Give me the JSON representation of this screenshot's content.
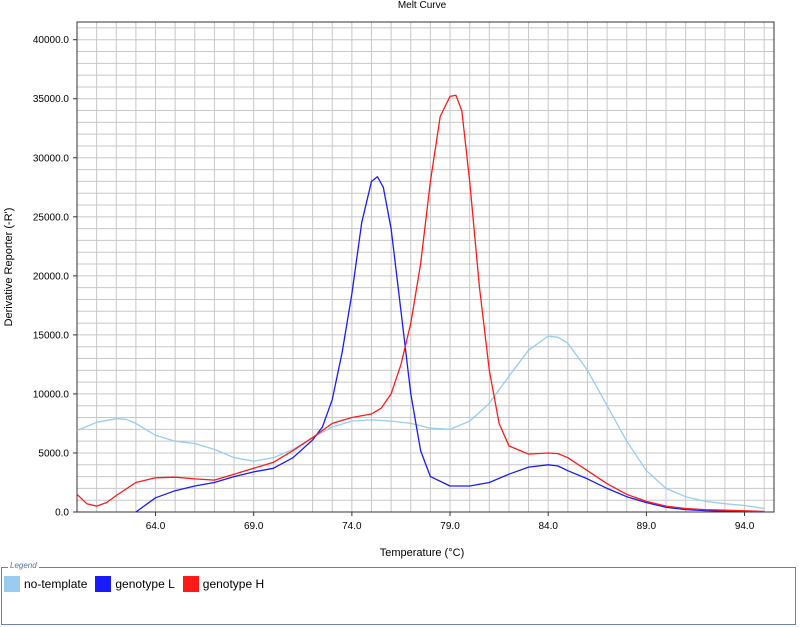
{
  "chart_data": {
    "type": "line",
    "title": "Melt Curve",
    "xlabel": "Temperature (°C)",
    "ylabel": "Derivative Reporter (-R')",
    "xlim": [
      60.0,
      95.5
    ],
    "ylim": [
      0,
      41500
    ],
    "xticks": [
      64.0,
      69.0,
      74.0,
      79.0,
      84.0,
      89.0,
      94.0
    ],
    "xtick_labels": [
      "64.0",
      "69.0",
      "74.0",
      "79.0",
      "84.0",
      "89.0",
      "94.0"
    ],
    "yticks": [
      0,
      5000,
      10000,
      15000,
      20000,
      25000,
      30000,
      35000,
      40000
    ],
    "ytick_labels": [
      "0.0",
      "5000.0",
      "10000.0",
      "15000.0",
      "20000.0",
      "25000.0",
      "30000.0",
      "35000.0",
      "40000.0"
    ],
    "grid": true,
    "legend_title": "Legend",
    "legend_position": "bottom",
    "series": [
      {
        "name": "no-template",
        "color": "#99ccee",
        "x": [
          60.0,
          61.0,
          62.0,
          62.5,
          63.0,
          64.0,
          65.0,
          66.0,
          67.0,
          68.0,
          69.0,
          70.0,
          71.0,
          72.0,
          73.0,
          74.0,
          75.0,
          76.0,
          77.0,
          78.0,
          79.0,
          80.0,
          81.0,
          82.0,
          83.0,
          84.0,
          84.5,
          85.0,
          86.0,
          87.0,
          88.0,
          89.0,
          90.0,
          91.0,
          92.0,
          93.0,
          94.0,
          95.0
        ],
        "y": [
          6900,
          7600,
          7900,
          7850,
          7500,
          6500,
          6000,
          5800,
          5300,
          4600,
          4300,
          4600,
          5300,
          6300,
          7200,
          7700,
          7800,
          7700,
          7500,
          7100,
          7000,
          7700,
          9200,
          11500,
          13700,
          14900,
          14800,
          14300,
          12000,
          9000,
          6000,
          3500,
          2000,
          1300,
          900,
          700,
          550,
          300
        ]
      },
      {
        "name": "genotype L",
        "color": "#1a1aff",
        "x": [
          63.0,
          64.0,
          65.0,
          66.0,
          67.0,
          68.0,
          69.0,
          70.0,
          71.0,
          72.0,
          72.5,
          73.0,
          73.5,
          74.0,
          74.5,
          75.0,
          75.3,
          75.6,
          76.0,
          76.5,
          77.0,
          77.5,
          78.0,
          79.0,
          80.0,
          81.0,
          82.0,
          83.0,
          84.0,
          84.5,
          85.0,
          86.0,
          87.0,
          88.0,
          89.0,
          90.0,
          91.0,
          92.0,
          93.0,
          94.0,
          95.0
        ],
        "y": [
          0,
          1200,
          1800,
          2200,
          2500,
          3000,
          3400,
          3700,
          4600,
          6100,
          7200,
          9500,
          13500,
          18500,
          24500,
          28000,
          28400,
          27500,
          24000,
          17000,
          10000,
          5200,
          3000,
          2200,
          2200,
          2500,
          3200,
          3800,
          4000,
          3900,
          3500,
          2800,
          2000,
          1300,
          800,
          400,
          200,
          120,
          80,
          50,
          30
        ]
      },
      {
        "name": "genotype H",
        "color": "#ff1a1a",
        "x": [
          60.0,
          60.5,
          61.0,
          61.5,
          62.0,
          63.0,
          64.0,
          65.0,
          66.0,
          67.0,
          68.0,
          69.0,
          70.0,
          71.0,
          72.0,
          73.0,
          74.0,
          75.0,
          75.5,
          76.0,
          76.5,
          77.0,
          77.5,
          78.0,
          78.5,
          79.0,
          79.3,
          79.6,
          80.0,
          80.5,
          81.0,
          81.5,
          82.0,
          83.0,
          84.0,
          84.5,
          85.0,
          86.0,
          87.0,
          88.0,
          89.0,
          90.0,
          91.0,
          92.0,
          93.0,
          94.0,
          95.0
        ],
        "y": [
          1500,
          700,
          500,
          800,
          1400,
          2500,
          2900,
          2950,
          2800,
          2700,
          3200,
          3700,
          4200,
          5200,
          6300,
          7500,
          8000,
          8300,
          8800,
          10000,
          12500,
          16000,
          21000,
          28000,
          33500,
          35200,
          35300,
          34000,
          28000,
          19000,
          12000,
          7500,
          5600,
          4900,
          5000,
          4950,
          4600,
          3500,
          2400,
          1500,
          900,
          500,
          300,
          200,
          150,
          100,
          50
        ]
      }
    ]
  }
}
